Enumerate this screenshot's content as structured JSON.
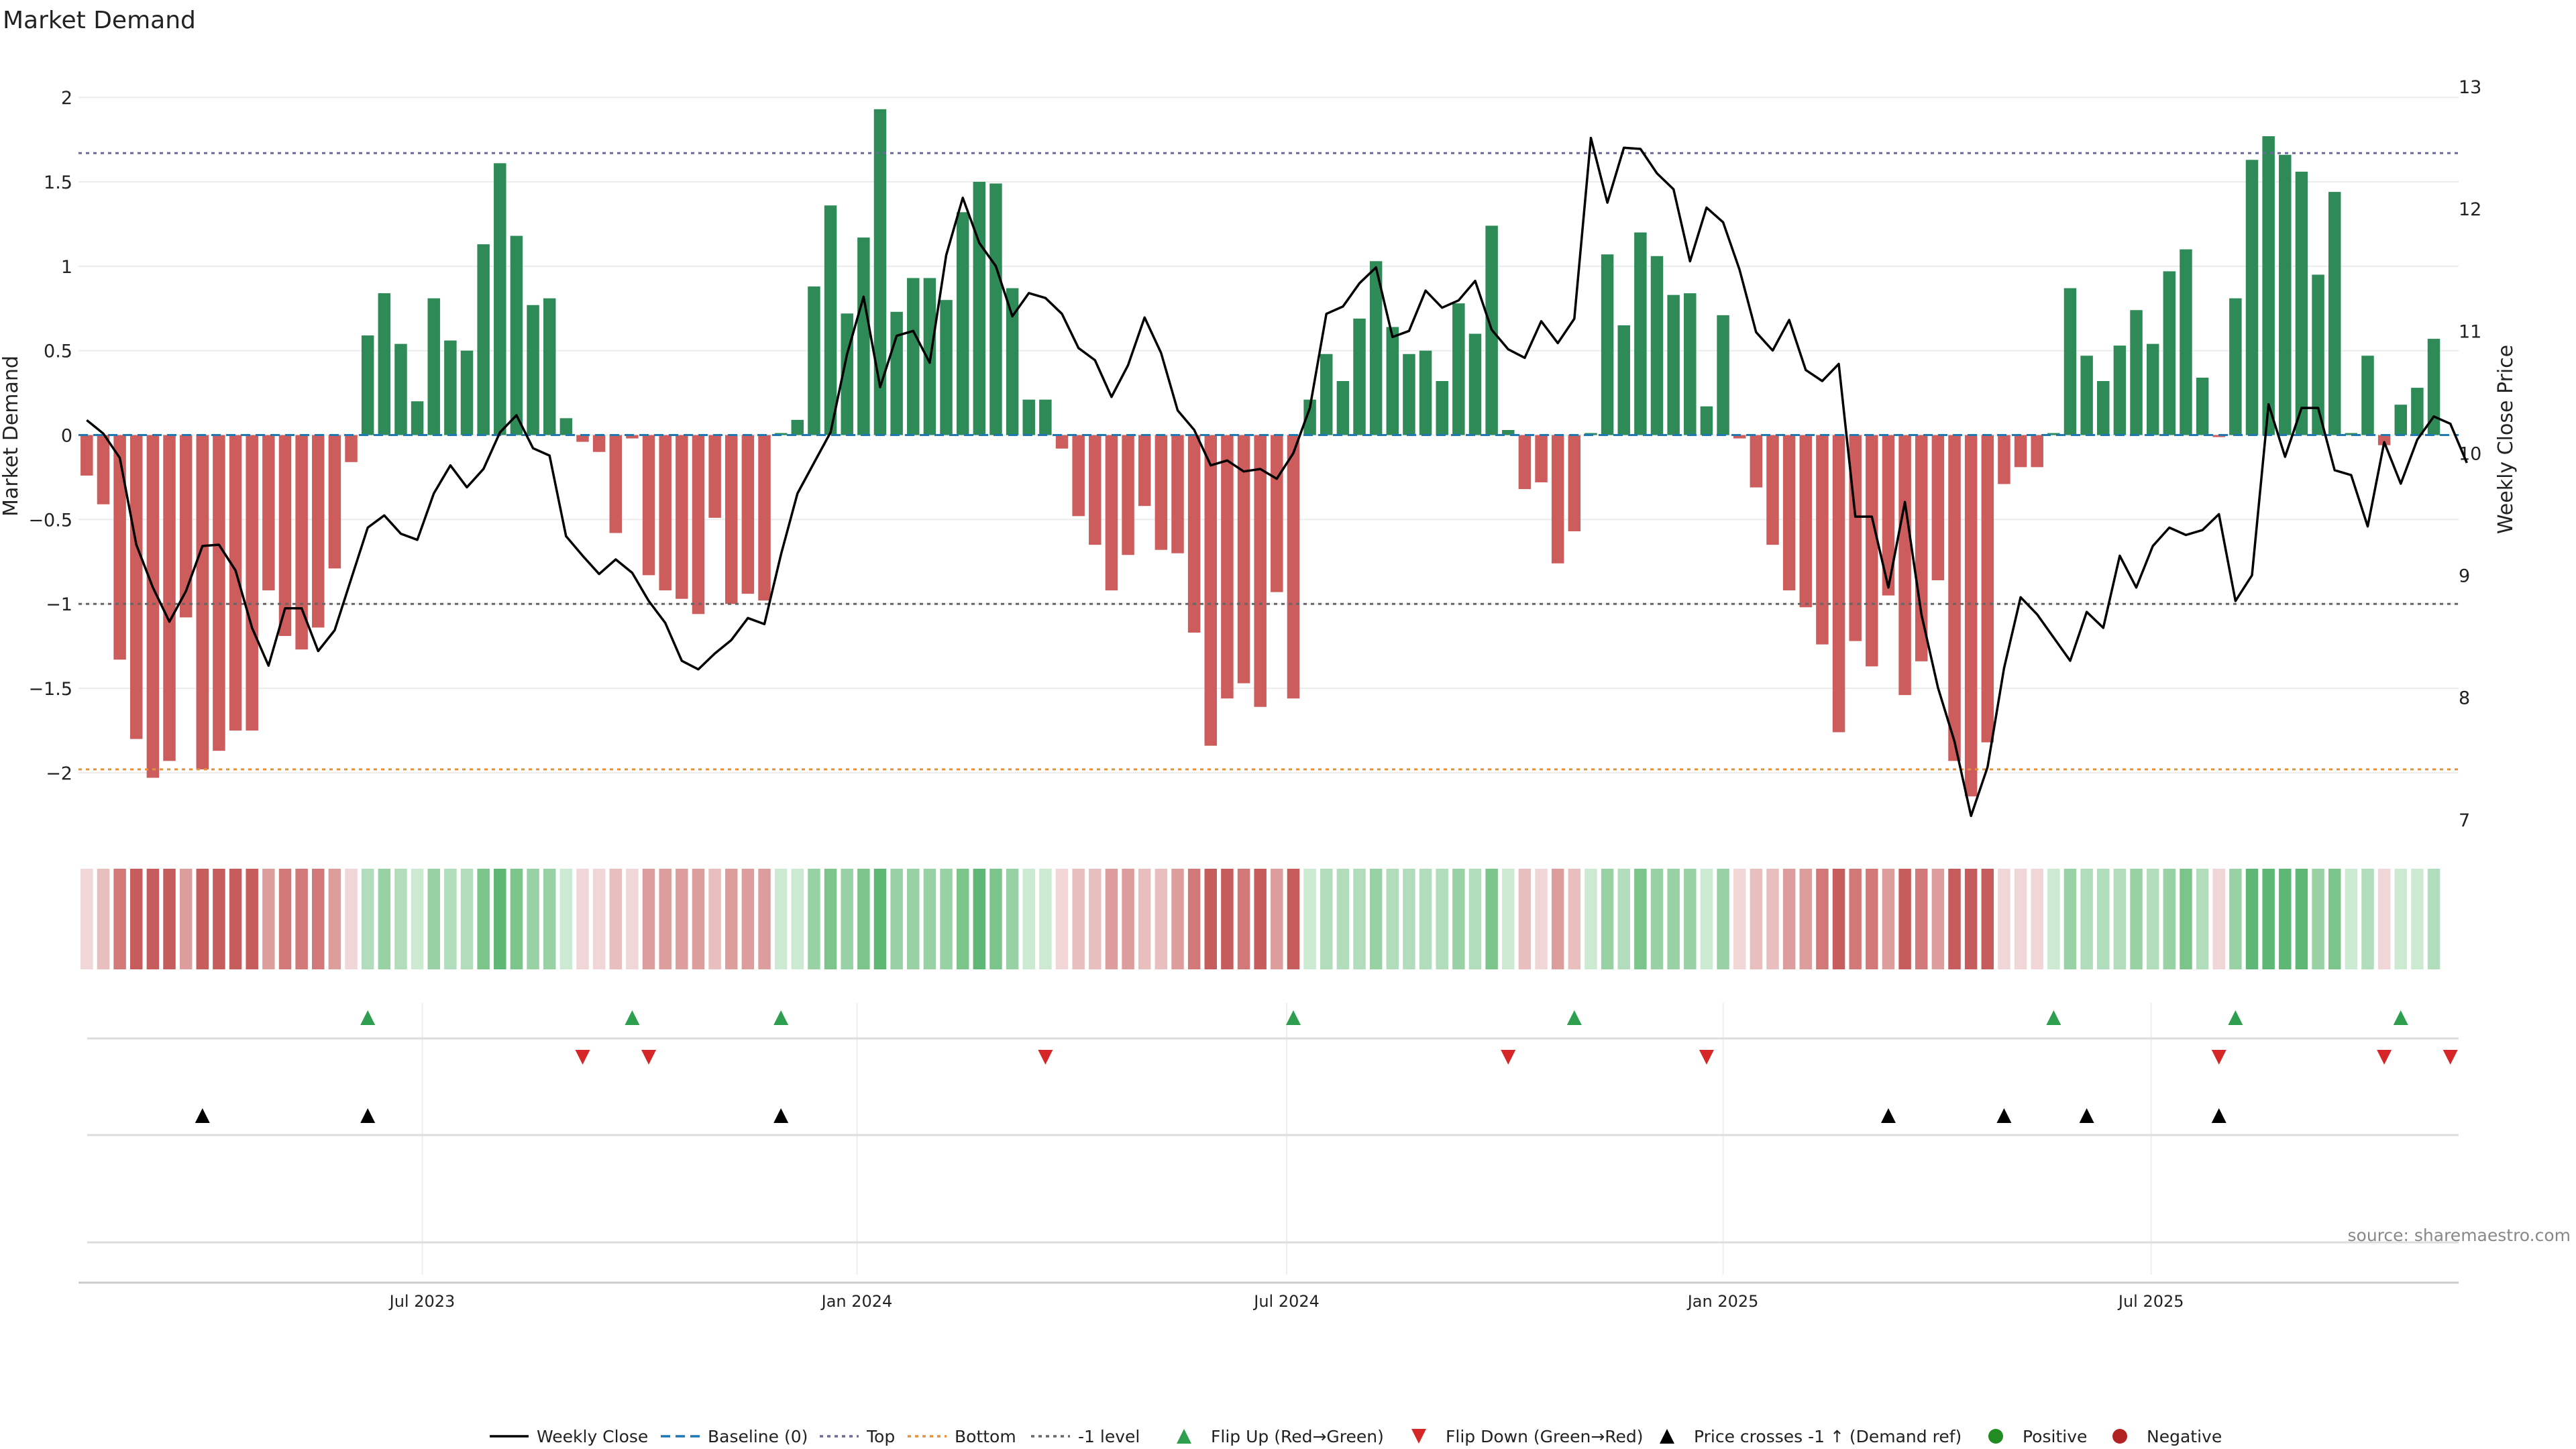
{
  "title": "Market Demand",
  "source": "source: sharemaestro.com",
  "colors": {
    "green": "#2e8b57",
    "red": "#cd5c5c",
    "price": "#000000",
    "top": "#6a6a9a",
    "bottom": "#e8913b",
    "minus1": "#666666",
    "baseline": "#1f77b4",
    "flip_up": "#2e9e4f",
    "flip_down": "#d62728",
    "cross": "#000000",
    "positive_dot": "#228b22",
    "negative_dot": "#b22222"
  },
  "chart_data": {
    "type": "bar",
    "title": "Market Demand",
    "ylabel": "Market Demand",
    "y2label": "Weekly Close Price",
    "ylim": [
      -2.35,
      2.1
    ],
    "y2lim": [
      6.9,
      13.05
    ],
    "yticks": [
      2,
      1.5,
      1,
      0.5,
      0,
      -0.5,
      -1,
      -1.5,
      -2
    ],
    "ytick_labels": [
      "2",
      "1.5",
      "1",
      "0.5",
      "0",
      "−0.5",
      "−1",
      "−1.5",
      "−2"
    ],
    "y2ticks": [
      13,
      12,
      11,
      10,
      9,
      8,
      7
    ],
    "y2tick_labels": [
      "13",
      "12",
      "11",
      "10",
      "9",
      "8",
      "7"
    ],
    "x_start": "2023-02-06",
    "week_count": 144,
    "xticks": [
      {
        "label": "Jul 2023",
        "week": 20.3
      },
      {
        "label": "Jan 2024",
        "week": 46.6
      },
      {
        "label": "Jul 2024",
        "week": 72.6
      },
      {
        "label": "Jan 2025",
        "week": 99.0
      },
      {
        "label": "Jul 2025",
        "week": 124.9
      }
    ],
    "levels": {
      "top": 1.67,
      "bottom": -1.98,
      "minus1": -1.0,
      "baseline": 0
    },
    "demand": [
      -0.24,
      -0.41,
      -1.33,
      -1.8,
      -2.03,
      -1.93,
      -1.08,
      -1.98,
      -1.87,
      -1.75,
      -1.75,
      -0.92,
      -1.19,
      -1.27,
      -1.14,
      -0.79,
      -0.16,
      0.59,
      0.84,
      0.54,
      0.2,
      0.81,
      0.56,
      0.5,
      1.13,
      1.61,
      1.18,
      0.77,
      0.81,
      0.1,
      -0.04,
      -0.1,
      -0.58,
      -0.02,
      -0.83,
      -0.92,
      -0.97,
      -1.06,
      -0.49,
      -1.0,
      -0.94,
      -0.98,
      0.0,
      0.09,
      0.88,
      1.36,
      0.72,
      1.17,
      1.93,
      0.73,
      0.93,
      0.93,
      0.8,
      1.32,
      1.5,
      1.49,
      0.87,
      0.21,
      0.21,
      -0.08,
      -0.48,
      -0.65,
      -0.92,
      -0.71,
      -0.42,
      -0.68,
      -0.7,
      -1.17,
      -1.84,
      -1.56,
      -1.47,
      -1.61,
      -0.93,
      -1.56,
      0.21,
      0.48,
      0.32,
      0.69,
      1.03,
      0.64,
      0.48,
      0.5,
      0.32,
      0.78,
      0.6,
      1.24,
      0.03,
      -0.32,
      -0.28,
      -0.76,
      -0.57,
      0.0,
      1.07,
      0.65,
      1.2,
      1.06,
      0.83,
      0.84,
      0.17,
      0.71,
      -0.02,
      -0.31,
      -0.65,
      -0.92,
      -1.02,
      -1.24,
      -1.76,
      -1.22,
      -1.37,
      -0.95,
      -1.54,
      -1.34,
      -0.86,
      -1.93,
      -2.14,
      -1.82,
      -0.29,
      -0.19,
      -0.19,
      0.0,
      0.87,
      0.47,
      0.32,
      0.53,
      0.74,
      0.54,
      0.97,
      1.1,
      0.34,
      -0.01,
      0.81,
      1.63,
      1.77,
      1.66,
      1.56,
      0.95,
      1.44,
      0.0,
      0.47,
      -0.06,
      0.18,
      0.28,
      0.57
    ],
    "price": [
      10.27,
      10.16,
      9.96,
      9.25,
      8.9,
      8.62,
      8.87,
      9.24,
      9.25,
      9.04,
      8.57,
      8.26,
      8.73,
      8.73,
      8.38,
      8.55,
      8.97,
      9.39,
      9.49,
      9.34,
      9.29,
      9.67,
      9.9,
      9.72,
      9.87,
      10.17,
      10.31,
      10.04,
      9.98,
      9.32,
      9.16,
      9.01,
      9.13,
      9.02,
      8.79,
      8.61,
      8.3,
      8.23,
      8.36,
      8.47,
      8.65,
      8.6,
      9.17,
      9.67,
      9.92,
      10.17,
      10.81,
      11.28,
      10.54,
      10.96,
      11.0,
      10.74,
      11.62,
      12.09,
      11.72,
      11.53,
      11.12,
      11.31,
      11.27,
      11.14,
      10.86,
      10.76,
      10.46,
      10.72,
      11.11,
      10.82,
      10.35,
      10.19,
      9.9,
      9.94,
      9.85,
      9.87,
      9.79,
      10.0,
      10.37,
      11.14,
      11.2,
      11.39,
      11.52,
      10.95,
      11.0,
      11.33,
      11.19,
      11.25,
      11.41,
      11.01,
      10.85,
      10.78,
      11.08,
      10.9,
      11.1,
      12.58,
      12.05,
      12.5,
      12.49,
      12.29,
      12.16,
      11.57,
      12.01,
      11.89,
      11.5,
      10.99,
      10.84,
      11.09,
      10.68,
      10.59,
      10.73,
      9.48,
      9.48,
      8.9,
      9.6,
      8.68,
      8.08,
      7.64,
      7.03,
      7.43,
      8.24,
      8.82,
      8.68,
      8.49,
      8.3,
      8.7,
      8.57,
      9.16,
      8.9,
      9.24,
      9.39,
      9.33,
      9.37,
      9.5,
      8.79,
      9.0,
      10.4,
      9.97,
      10.37,
      10.37,
      9.86,
      9.82,
      9.4,
      10.09,
      9.75,
      10.11,
      10.3,
      10.24,
      9.92
    ],
    "flip_up_weeks": [
      17,
      33,
      42,
      73,
      90,
      119,
      130,
      140
    ],
    "flip_down_weeks": [
      30,
      34,
      58,
      86,
      98,
      129,
      139,
      143
    ],
    "cross_weeks": [
      7,
      17,
      42,
      109,
      116,
      121,
      129
    ],
    "legend": [
      {
        "label": "Weekly Close",
        "kind": "line-solid"
      },
      {
        "label": "Baseline (0)",
        "kind": "line-dash"
      },
      {
        "label": "Top",
        "kind": "line-dot-top"
      },
      {
        "label": "Bottom",
        "kind": "line-dot-bottom"
      },
      {
        "label": "-1 level",
        "kind": "line-dot-minus1"
      },
      {
        "label": "Flip Up (Red→Green)",
        "kind": "tri-up-green"
      },
      {
        "label": "Flip Down (Green→Red)",
        "kind": "tri-down-red"
      },
      {
        "label": "Price crosses -1 ↑ (Demand ref)",
        "kind": "tri-up-black"
      },
      {
        "label": "Positive",
        "kind": "dot-green"
      },
      {
        "label": "Negative",
        "kind": "dot-red"
      }
    ]
  }
}
